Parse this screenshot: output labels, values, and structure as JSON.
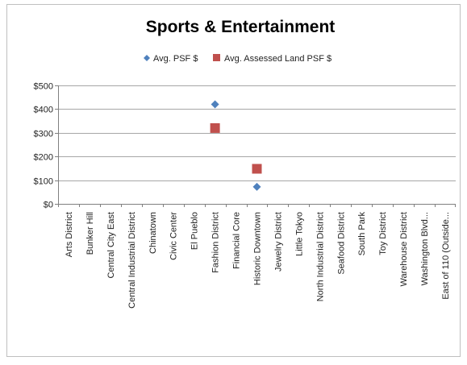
{
  "chart_data": {
    "type": "scatter",
    "title": "Sports & Entertainment",
    "xlabel": "",
    "ylabel": "",
    "ylim": [
      0,
      500
    ],
    "yticks": [
      0,
      100,
      200,
      300,
      400,
      500
    ],
    "ytick_labels": [
      "$0",
      "$100",
      "$200",
      "$300",
      "$400",
      "$500"
    ],
    "grid": "horizontal",
    "legend_position": "top",
    "categories": [
      "Arts District",
      "Bunker Hill",
      "Central City East",
      "Central Industrial District",
      "Chinatown",
      "Civic Center",
      "El Pueblo",
      "Fashion District",
      "Financial Core",
      "Historic Downtown",
      "Jewelry District",
      "Little Tokyo",
      "North Industrial District",
      "Seafood District",
      "South Park",
      "Toy District",
      "Warehouse District",
      "Washington Blvd...",
      "East of 110 (Outside..."
    ],
    "series": [
      {
        "name": "Avg. PSF $",
        "marker": "diamond",
        "color": "#4f81bd",
        "values": [
          null,
          null,
          null,
          null,
          null,
          null,
          null,
          420,
          null,
          72,
          null,
          null,
          null,
          null,
          null,
          null,
          null,
          null,
          null
        ]
      },
      {
        "name": "Avg. Assessed Land PSF $",
        "marker": "square",
        "color": "#c0504d",
        "values": [
          null,
          null,
          null,
          null,
          null,
          null,
          null,
          320,
          null,
          148,
          null,
          null,
          null,
          null,
          null,
          null,
          null,
          null,
          null
        ]
      }
    ]
  }
}
